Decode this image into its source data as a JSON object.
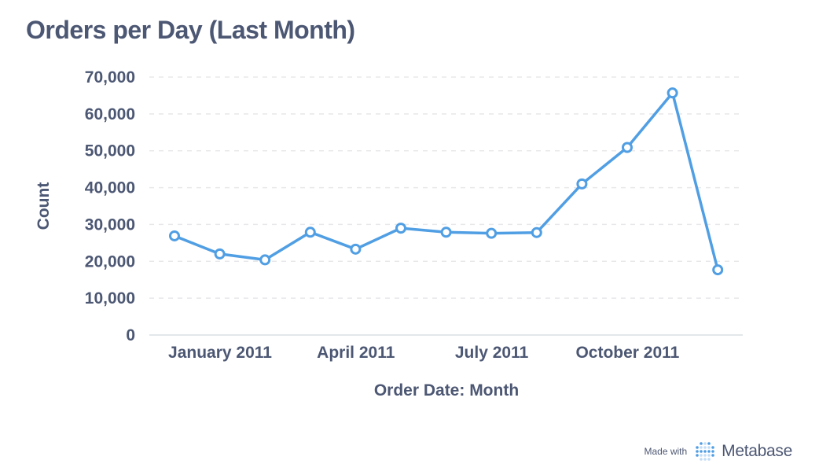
{
  "title": "Orders per Day (Last Month)",
  "footer": {
    "made_with": "Made with",
    "brand": "Metabase"
  },
  "colors": {
    "line": "#509ee3",
    "text": "#4c5773",
    "grid": "#e8e8ea",
    "axis": "#dcdfe4"
  },
  "chart_data": {
    "type": "line",
    "title": "Orders per Day (Last Month)",
    "xlabel": "Order Date: Month",
    "ylabel": "Count",
    "ylim": [
      0,
      70000
    ],
    "yticks": [
      0,
      10000,
      20000,
      30000,
      40000,
      50000,
      60000,
      70000
    ],
    "ytick_labels": [
      "0",
      "10,000",
      "20,000",
      "30,000",
      "40,000",
      "50,000",
      "60,000",
      "70,000"
    ],
    "xticks": [
      "January 2011",
      "April 2011",
      "July 2011",
      "October 2011"
    ],
    "x": [
      "2011-01",
      "2011-02",
      "2011-03",
      "2011-04",
      "2011-05",
      "2011-06",
      "2011-07",
      "2011-08",
      "2011-09",
      "2011-10",
      "2011-11",
      "2011-12",
      "2012-01"
    ],
    "series": [
      {
        "values": [
          26900,
          22000,
          20400,
          27900,
          23300,
          29000,
          27900,
          27600,
          27800,
          41000,
          50900,
          65700,
          17700
        ]
      }
    ],
    "grid": true,
    "legend": "none"
  }
}
